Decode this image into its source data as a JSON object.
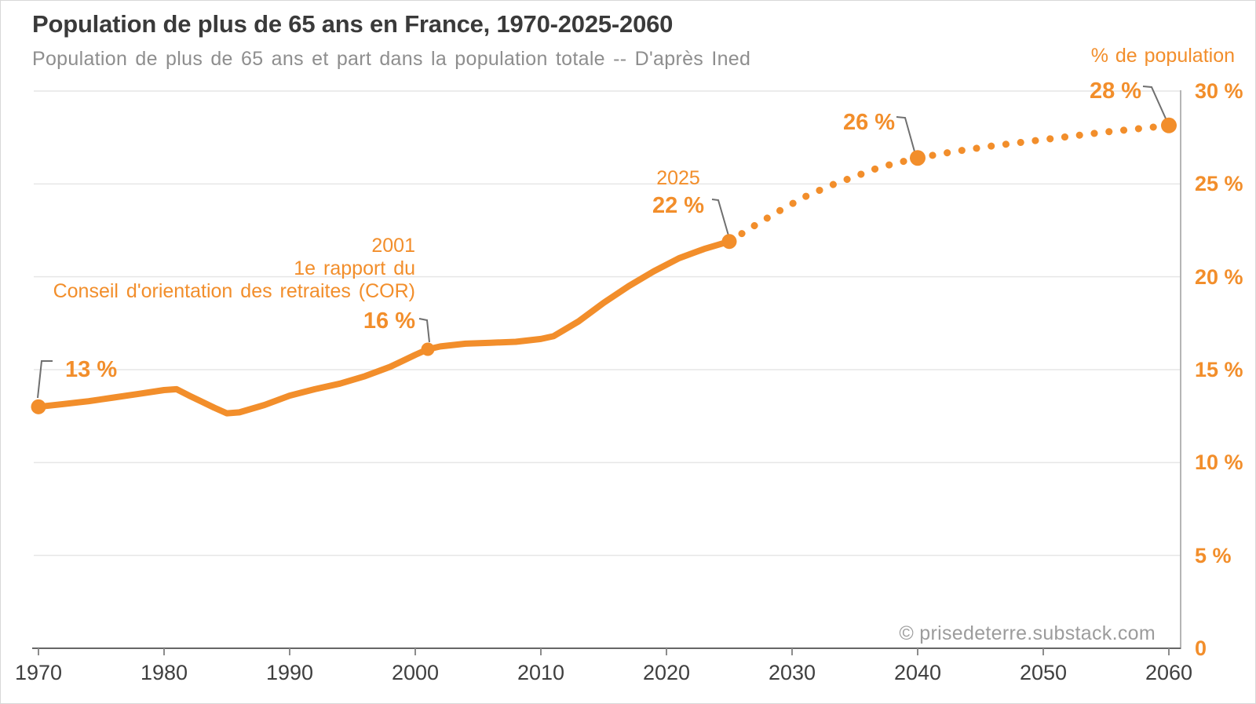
{
  "header": {
    "title": "Population de plus de 65 ans en France, 1970-2025-2060",
    "subtitle": "Population de plus de 65 ans et part dans la population totale -- D'après Ined"
  },
  "axis": {
    "y_title": "% de population"
  },
  "annotations": {
    "cor": {
      "line1": "2001",
      "line2": "1e rapport du",
      "line3": "Conseil d'orientation des retraites (COR)"
    },
    "p2025": {
      "year": "2025"
    }
  },
  "footer": {
    "watermark": "© prisedeterre.substack.com"
  },
  "colors": {
    "accent": "#F28E2B",
    "gridline": "#e6e6e6",
    "axis_line": "#666666",
    "plot_border": "#b5b5b5",
    "tick": "#8c8c8c",
    "leader": "#6f6f6f",
    "x_label": "#3f3f3f",
    "title": "#3a3a3a",
    "subtitle": "#8e8e8e",
    "watermark": "#9c9c9c"
  },
  "chart_data": {
    "type": "line",
    "title": "Population de plus de 65 ans en France, 1970-2025-2060",
    "subtitle": "Population de plus de 65 ans et part dans la population totale -- D'après Ined",
    "ylabel": "% de population",
    "xlim": [
      1970,
      2060
    ],
    "ylim": [
      0,
      30
    ],
    "grid": "horizontal",
    "legend_position": "none",
    "y_ticks": [
      {
        "value": 30,
        "label": "30 %"
      },
      {
        "value": 25,
        "label": "25 %"
      },
      {
        "value": 20,
        "label": "20 %"
      },
      {
        "value": 15,
        "label": "15 %"
      },
      {
        "value": 10,
        "label": "10 %"
      },
      {
        "value": 5,
        "label": "5 %"
      },
      {
        "value": 0,
        "label": "0"
      }
    ],
    "x_ticks": [
      {
        "value": 1970,
        "label": "1970"
      },
      {
        "value": 1980,
        "label": "1980"
      },
      {
        "value": 1990,
        "label": "1990"
      },
      {
        "value": 2000,
        "label": "2000"
      },
      {
        "value": 2010,
        "label": "2010"
      },
      {
        "value": 2020,
        "label": "2020"
      },
      {
        "value": 2030,
        "label": "2030"
      },
      {
        "value": 2040,
        "label": "2040"
      },
      {
        "value": 2050,
        "label": "2050"
      },
      {
        "value": 2060,
        "label": "2060"
      }
    ],
    "series": [
      {
        "name": "observation",
        "style": "solid",
        "points": [
          [
            1970,
            13.0
          ],
          [
            1972,
            13.15
          ],
          [
            1974,
            13.3
          ],
          [
            1976,
            13.5
          ],
          [
            1978,
            13.7
          ],
          [
            1980,
            13.9
          ],
          [
            1981,
            13.95
          ],
          [
            1982,
            13.6
          ],
          [
            1984,
            12.95
          ],
          [
            1985,
            12.65
          ],
          [
            1986,
            12.7
          ],
          [
            1988,
            13.1
          ],
          [
            1990,
            13.6
          ],
          [
            1992,
            13.95
          ],
          [
            1994,
            14.25
          ],
          [
            1996,
            14.65
          ],
          [
            1998,
            15.15
          ],
          [
            2000,
            15.8
          ],
          [
            2001,
            16.1
          ],
          [
            2002,
            16.25
          ],
          [
            2004,
            16.4
          ],
          [
            2006,
            16.45
          ],
          [
            2008,
            16.5
          ],
          [
            2010,
            16.65
          ],
          [
            2011,
            16.8
          ],
          [
            2013,
            17.6
          ],
          [
            2015,
            18.6
          ],
          [
            2017,
            19.5
          ],
          [
            2019,
            20.3
          ],
          [
            2021,
            21.0
          ],
          [
            2023,
            21.5
          ],
          [
            2025,
            21.9
          ]
        ]
      },
      {
        "name": "projection",
        "style": "dotted",
        "points": [
          [
            2025,
            21.9
          ],
          [
            2027,
            22.75
          ],
          [
            2029,
            23.55
          ],
          [
            2031,
            24.3
          ],
          [
            2033,
            24.9
          ],
          [
            2035,
            25.4
          ],
          [
            2037,
            25.9
          ],
          [
            2040,
            26.4
          ],
          [
            2043,
            26.75
          ],
          [
            2046,
            27.05
          ],
          [
            2049,
            27.3
          ],
          [
            2052,
            27.55
          ],
          [
            2055,
            27.8
          ],
          [
            2058,
            28.0
          ],
          [
            2060,
            28.15
          ]
        ]
      }
    ],
    "markers": [
      {
        "x": 1970,
        "y": 13.0,
        "label": "13 %"
      },
      {
        "x": 2001,
        "y": 16.1,
        "label": "16 %"
      },
      {
        "x": 2025,
        "y": 21.9,
        "label": "22 %"
      },
      {
        "x": 2040,
        "y": 26.4,
        "label": "26 %"
      },
      {
        "x": 2060,
        "y": 28.15,
        "label": "28 %"
      }
    ]
  }
}
